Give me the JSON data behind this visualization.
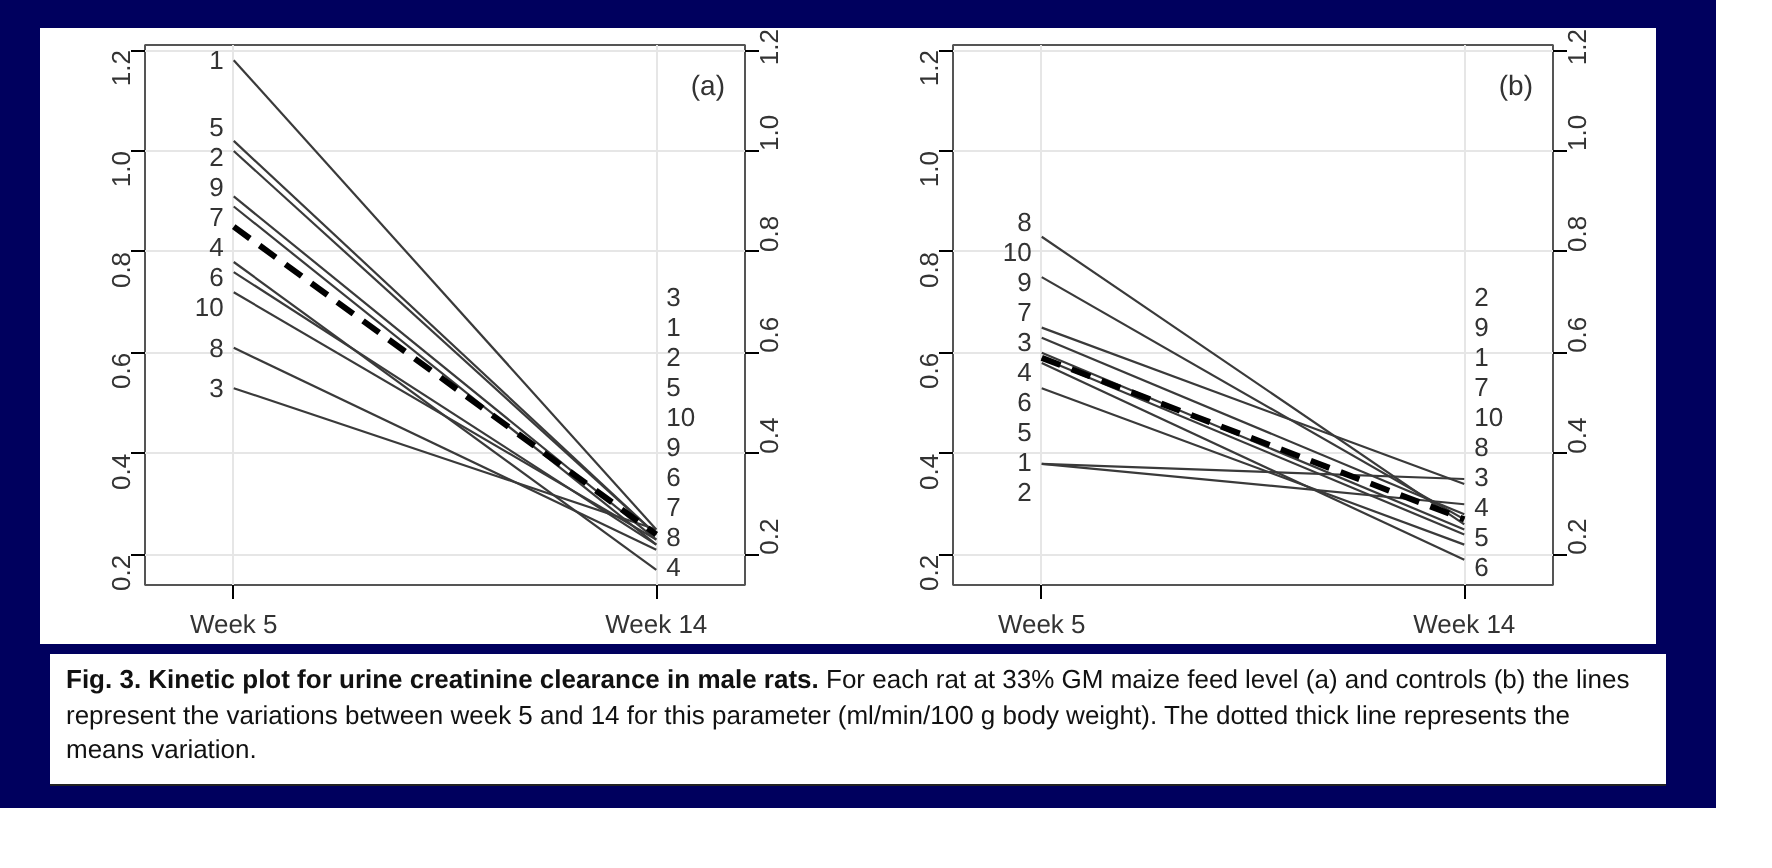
{
  "chart_data": [
    {
      "type": "line",
      "annotations": [
        "(a)"
      ],
      "categories": [
        "Week 5",
        "Week 14"
      ],
      "series": [
        {
          "name": "1",
          "color": "#3a3a3a",
          "values": [
            1.18,
            0.25
          ]
        },
        {
          "name": "5",
          "color": "#3a3a3a",
          "values": [
            1.02,
            0.24
          ]
        },
        {
          "name": "2",
          "color": "#3a3a3a",
          "values": [
            1.0,
            0.24
          ]
        },
        {
          "name": "9",
          "color": "#3a3a3a",
          "values": [
            0.91,
            0.23
          ]
        },
        {
          "name": "7",
          "color": "#3a3a3a",
          "values": [
            0.89,
            0.22
          ]
        },
        {
          "name": "4",
          "color": "#3a3a3a",
          "values": [
            0.78,
            0.17
          ]
        },
        {
          "name": "6",
          "color": "#3a3a3a",
          "values": [
            0.76,
            0.22
          ]
        },
        {
          "name": "10",
          "color": "#3a3a3a",
          "values": [
            0.72,
            0.23
          ]
        },
        {
          "name": "8",
          "color": "#3a3a3a",
          "values": [
            0.61,
            0.21
          ]
        },
        {
          "name": "3",
          "color": "#3a3a3a",
          "values": [
            0.53,
            0.25
          ]
        },
        {
          "color": "#000000",
          "values": [
            0.85,
            0.24
          ],
          "line_style": "dashed"
        }
      ],
      "ylim": [
        0.14,
        1.21
      ],
      "yticks": [
        {
          "value": 0.2,
          "label": "0.2"
        },
        {
          "value": 0.4,
          "label": "0.4"
        },
        {
          "value": 0.6,
          "label": "0.6"
        },
        {
          "value": 0.8,
          "label": "0.8"
        },
        {
          "value": 1.0,
          "label": "1.0"
        },
        {
          "value": 1.2,
          "label": "1.2"
        }
      ],
      "y2lim": [
        0.14,
        1.21
      ],
      "y2ticks": [
        {
          "value": 0.2,
          "label": "0.2"
        },
        {
          "value": 0.4,
          "label": "0.4"
        },
        {
          "value": 0.6,
          "label": "0.6"
        },
        {
          "value": 0.8,
          "label": "0.8"
        },
        {
          "value": 1.0,
          "label": "1.0"
        },
        {
          "value": 1.2,
          "label": "1.2"
        }
      ],
      "grid": true
    },
    {
      "type": "line",
      "annotations": [
        "(b)",
        "Fig. 3. Kinetic plot for urine creatinine clearance in male rats.",
        "For each rat at 33% GM maize feed level (a) and controls (b) the lines represent the variations between week 5 and 14 for this parameter (ml/min/100 g body weight). The dotted thick line represents the means variation."
      ],
      "categories": [
        "Week 5",
        "Week 14"
      ],
      "series": [
        {
          "name": "8",
          "color": "#3a3a3a",
          "values": [
            0.83,
            0.26
          ]
        },
        {
          "name": "10",
          "color": "#3a3a3a",
          "values": [
            0.75,
            0.27
          ]
        },
        {
          "name": "9",
          "color": "#3a3a3a",
          "values": [
            0.65,
            0.34
          ]
        },
        {
          "name": "7",
          "color": "#3a3a3a",
          "values": [
            0.63,
            0.28
          ]
        },
        {
          "name": "3",
          "color": "#3a3a3a",
          "values": [
            0.6,
            0.25
          ]
        },
        {
          "name": "4",
          "color": "#3a3a3a",
          "values": [
            0.59,
            0.24
          ]
        },
        {
          "name": "6",
          "color": "#3a3a3a",
          "values": [
            0.58,
            0.19
          ]
        },
        {
          "name": "5",
          "color": "#3a3a3a",
          "values": [
            0.53,
            0.22
          ]
        },
        {
          "name": "2",
          "color": "#3a3a3a",
          "values": [
            0.38,
            0.35
          ]
        },
        {
          "name": "1",
          "color": "#3a3a3a",
          "values": [
            0.38,
            0.3
          ]
        },
        {
          "color": "#000000",
          "values": [
            0.59,
            0.27
          ],
          "line_style": "dashed"
        }
      ],
      "ylim": [
        0.14,
        1.21
      ],
      "yticks": [
        {
          "value": 0.2,
          "label": "0.2"
        },
        {
          "value": 0.4,
          "label": "0.4"
        },
        {
          "value": 0.6,
          "label": "0.6"
        },
        {
          "value": 0.8,
          "label": "0.8"
        },
        {
          "value": 1.0,
          "label": "1.0"
        },
        {
          "value": 1.2,
          "label": "1.2"
        }
      ],
      "y2lim": [
        0.14,
        1.21
      ],
      "y2ticks": [
        {
          "value": 0.2,
          "label": "0.2"
        },
        {
          "value": 0.4,
          "label": "0.4"
        },
        {
          "value": 0.6,
          "label": "0.6"
        },
        {
          "value": 0.8,
          "label": "0.8"
        },
        {
          "value": 1.0,
          "label": "1.0"
        },
        {
          "value": 1.2,
          "label": "1.2"
        }
      ],
      "grid": true
    }
  ]
}
